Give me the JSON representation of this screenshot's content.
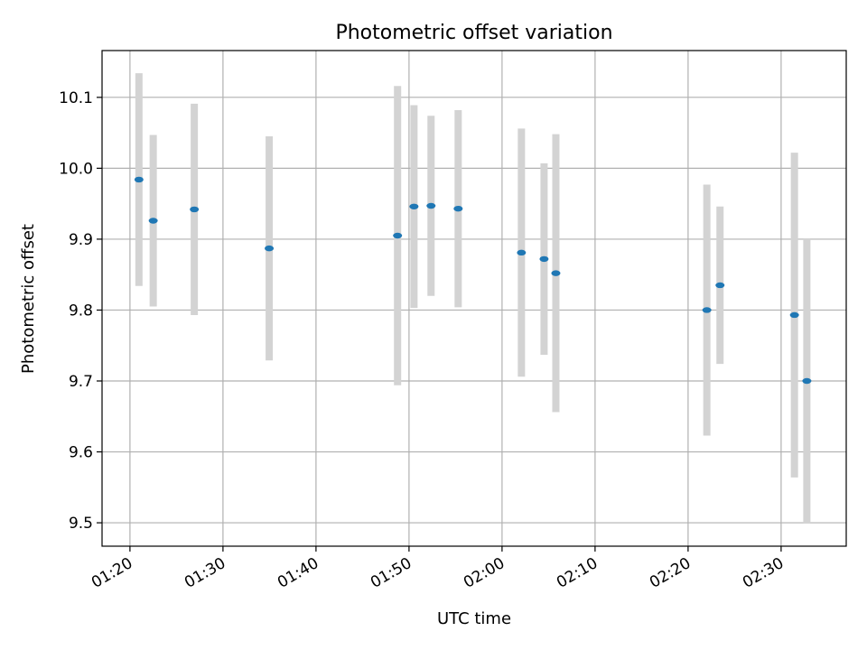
{
  "chart_data": {
    "type": "scatter",
    "title": "Photometric offset variation",
    "xlabel": "UTC time",
    "ylabel": "Photometric offset",
    "x_ticks": [
      "01:20",
      "01:30",
      "01:40",
      "01:50",
      "02:00",
      "02:10",
      "02:20",
      "02:30"
    ],
    "y_ticks": [
      "9.5",
      "9.6",
      "9.7",
      "9.8",
      "9.9",
      "10.0",
      "10.1"
    ],
    "xlim": [
      "01:17",
      "02:37"
    ],
    "ylim": [
      9.467,
      10.166
    ],
    "grid": true,
    "errorbar_color": "#d3d3d3",
    "point_color": "#1f77b4",
    "points": [
      {
        "x": "01:20:58",
        "y": 9.984,
        "err": 0.15
      },
      {
        "x": "01:22:30",
        "y": 9.926,
        "err": 0.121
      },
      {
        "x": "01:26:55",
        "y": 9.942,
        "err": 0.149
      },
      {
        "x": "01:34:58",
        "y": 9.887,
        "err": 0.158
      },
      {
        "x": "01:48:46",
        "y": 9.905,
        "err": 0.211
      },
      {
        "x": "01:50:32",
        "y": 9.946,
        "err": 0.143
      },
      {
        "x": "01:52:22",
        "y": 9.947,
        "err": 0.127
      },
      {
        "x": "01:55:17",
        "y": 9.943,
        "err": 0.139
      },
      {
        "x": "02:02:05",
        "y": 9.881,
        "err": 0.175
      },
      {
        "x": "02:04:31",
        "y": 9.872,
        "err": 0.135
      },
      {
        "x": "02:05:47",
        "y": 9.852,
        "err": 0.196
      },
      {
        "x": "02:22:01",
        "y": 9.8,
        "err": 0.177
      },
      {
        "x": "02:23:26",
        "y": 9.835,
        "err": 0.111
      },
      {
        "x": "02:31:26",
        "y": 9.793,
        "err": 0.229
      },
      {
        "x": "02:32:46",
        "y": 9.7,
        "err": 0.2
      }
    ]
  }
}
